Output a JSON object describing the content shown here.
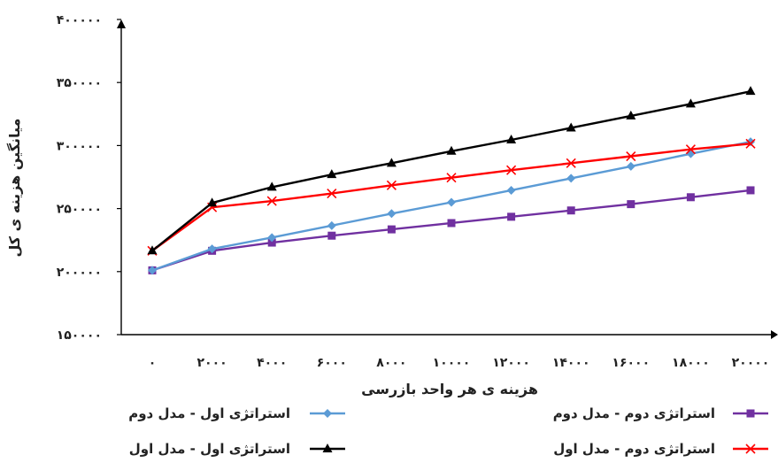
{
  "chart_data": {
    "type": "line",
    "xlabel": "هزینه ی هر واحد بازرسی",
    "ylabel": "میانگین هزینه ی کل",
    "ylim": [
      150000,
      400000
    ],
    "x": [
      0,
      2000,
      4000,
      6000,
      8000,
      10000,
      12000,
      14000,
      16000,
      18000,
      20000
    ],
    "x_tick_labels": [
      "۰",
      "۲۰۰۰",
      "۴۰۰۰",
      "۶۰۰۰",
      "۸۰۰۰",
      "۱۰۰۰۰",
      "۱۲۰۰۰",
      "۱۴۰۰۰",
      "۱۶۰۰۰",
      "۱۸۰۰۰",
      "۲۰۰۰۰"
    ],
    "y_ticks": [
      150000,
      200000,
      250000,
      300000,
      350000,
      400000
    ],
    "y_tick_labels": [
      "۱۵۰۰۰۰",
      "۲۰۰۰۰۰",
      "۲۵۰۰۰۰",
      "۳۰۰۰۰۰",
      "۳۵۰۰۰۰",
      "۴۰۰۰۰۰"
    ],
    "grid": false,
    "legend_position": "bottom",
    "series": [
      {
        "name": "استراتژی اول - مدل دوم",
        "color": "#5b9bd5",
        "marker": "diamond",
        "values": [
          201000,
          218000,
          227000,
          236500,
          246000,
          255000,
          264500,
          274000,
          283500,
          293500,
          303000
        ]
      },
      {
        "name": "استراتژی دوم - مدل دوم",
        "color": "#7030a0",
        "marker": "square",
        "values": [
          201000,
          216500,
          223000,
          228500,
          233500,
          238500,
          243500,
          248500,
          253500,
          259000,
          264500
        ]
      },
      {
        "name": "استراتژی اول - مدل اول",
        "color": "#000000",
        "marker": "triangle",
        "values": [
          216500,
          254500,
          267000,
          277000,
          286000,
          295500,
          304500,
          314000,
          323500,
          333000,
          343000
        ]
      },
      {
        "name": "استراتژی دوم - مدل اول",
        "color": "#ff0000",
        "marker": "x",
        "values": [
          216500,
          251000,
          256000,
          262000,
          268500,
          274500,
          280500,
          286000,
          291500,
          297000,
          301500
        ]
      }
    ]
  }
}
